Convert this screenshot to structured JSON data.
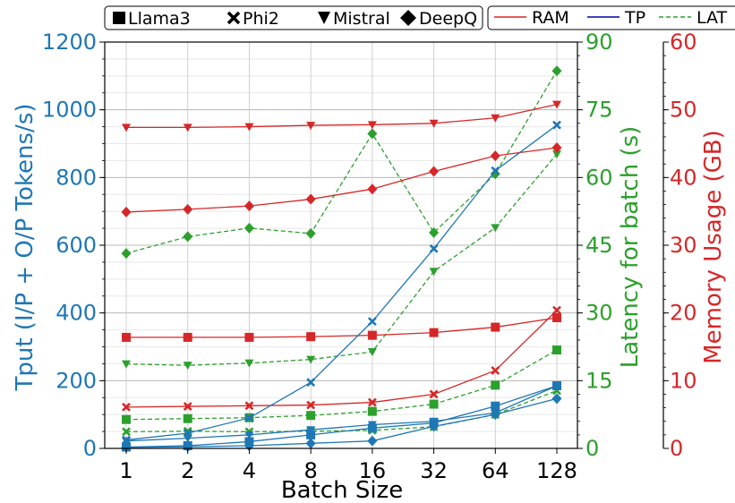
{
  "chart_data": {
    "type": "line",
    "xlabel": "Batch Size",
    "categories": [
      "1",
      "2",
      "4",
      "8",
      "16",
      "32",
      "64",
      "128"
    ],
    "colors": {
      "tput": "#1f77b4",
      "latency": "#2ca02c",
      "ram": "#d62728"
    },
    "axes": {
      "tput": {
        "label": "Tput (I/P + O/P Tokens/s)",
        "ylim": [
          0,
          1200
        ],
        "ticks": [
          "0",
          "200",
          "400",
          "600",
          "800",
          "1000",
          "1200"
        ]
      },
      "latency": {
        "label": "Latency for batch (s)",
        "ylim": [
          0,
          90
        ],
        "ticks": [
          "0",
          "15",
          "30",
          "45",
          "60",
          "75",
          "90"
        ]
      },
      "ram": {
        "label": "Memory Usage (GB)",
        "ylim": [
          0,
          60
        ],
        "ticks": [
          "0",
          "10",
          "20",
          "30",
          "40",
          "50",
          "60"
        ]
      }
    },
    "grid": true,
    "legend": {
      "placement": "top",
      "models": [
        {
          "marker": "square",
          "name": "Llama3"
        },
        {
          "marker": "x",
          "name": "Phi2"
        },
        {
          "marker": "triangle-down",
          "name": "Mistral"
        },
        {
          "marker": "diamond",
          "name": "DeepQ"
        }
      ],
      "metrics": [
        {
          "style": "solid",
          "color": "#d62728",
          "name": "RAM"
        },
        {
          "style": "solid",
          "color": "#0000aa",
          "name": "TP"
        },
        {
          "style": "dashed",
          "color": "#2ca02c",
          "name": "LAT"
        }
      ]
    },
    "series": [
      {
        "metric": "tput",
        "model": "Llama3",
        "marker": "square",
        "values": [
          4,
          8,
          20,
          40,
          60,
          75,
          125,
          185
        ]
      },
      {
        "metric": "tput",
        "model": "Phi2",
        "marker": "x",
        "values": [
          25,
          45,
          90,
          195,
          375,
          590,
          820,
          955
        ]
      },
      {
        "metric": "tput",
        "model": "Mistral",
        "marker": "triangle-down",
        "values": [
          22,
          30,
          40,
          55,
          70,
          80,
          105,
          185
        ]
      },
      {
        "metric": "tput",
        "model": "DeepQ",
        "marker": "diamond",
        "values": [
          3,
          5,
          8,
          15,
          22,
          65,
          100,
          147
        ]
      },
      {
        "metric": "latency",
        "model": "Llama3",
        "marker": "square",
        "values": [
          6.4,
          6.6,
          6.8,
          7.3,
          8.2,
          9.8,
          14.0,
          21.8
        ]
      },
      {
        "metric": "latency",
        "model": "Phi2",
        "marker": "x",
        "values": [
          3.7,
          3.8,
          3.7,
          3.8,
          4.0,
          4.8,
          7.5,
          12.8
        ]
      },
      {
        "metric": "latency",
        "model": "Mistral",
        "marker": "triangle-down",
        "values": [
          18.7,
          18.4,
          18.9,
          19.7,
          21.4,
          39.2,
          48.9,
          65.2
        ]
      },
      {
        "metric": "latency",
        "model": "DeepQ",
        "marker": "diamond",
        "values": [
          43.2,
          46.9,
          48.8,
          47.6,
          69.7,
          47.8,
          60.8,
          83.6
        ]
      },
      {
        "metric": "ram",
        "model": "Llama3",
        "marker": "square",
        "values": [
          16.4,
          16.4,
          16.4,
          16.5,
          16.7,
          17.1,
          17.9,
          19.3
        ]
      },
      {
        "metric": "ram",
        "model": "Phi2",
        "marker": "x",
        "values": [
          6.1,
          6.2,
          6.3,
          6.4,
          6.8,
          8.0,
          11.5,
          20.4
        ]
      },
      {
        "metric": "ram",
        "model": "Mistral",
        "marker": "triangle-down",
        "values": [
          47.4,
          47.4,
          47.5,
          47.7,
          47.8,
          48.0,
          48.8,
          50.8
        ]
      },
      {
        "metric": "ram",
        "model": "DeepQ",
        "marker": "diamond",
        "values": [
          34.9,
          35.3,
          35.8,
          36.8,
          38.3,
          40.9,
          43.2,
          44.4
        ]
      }
    ]
  }
}
